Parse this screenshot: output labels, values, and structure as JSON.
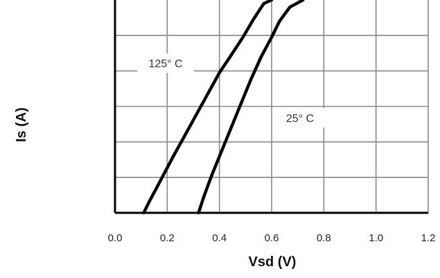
{
  "chart_data": {
    "type": "line",
    "xlabel": "Vsd (V)",
    "ylabel": "Is (A)",
    "xlim": [
      0.0,
      1.2
    ],
    "x_ticks": [
      "0.0",
      "0.2",
      "0.4",
      "0.6",
      "0.8",
      "1.0",
      "1.2"
    ],
    "ylim": [
      0,
      6
    ],
    "y_ticks": [],
    "grid": true,
    "series": [
      {
        "name": "125° C",
        "x": [
          0.11,
          0.13,
          0.17,
          0.22,
          0.28,
          0.34,
          0.4,
          0.45,
          0.49,
          0.53,
          0.57,
          0.6
        ],
        "y": [
          0.0,
          0.3,
          0.85,
          1.55,
          2.35,
          3.15,
          3.95,
          4.5,
          4.95,
          5.45,
          5.9,
          6.0
        ]
      },
      {
        "name": "25° C",
        "x": [
          0.32,
          0.34,
          0.37,
          0.42,
          0.47,
          0.52,
          0.56,
          0.6,
          0.63,
          0.67,
          0.72
        ],
        "y": [
          0.0,
          0.45,
          1.05,
          1.95,
          2.85,
          3.75,
          4.4,
          4.95,
          5.4,
          5.8,
          6.0
        ]
      }
    ]
  }
}
